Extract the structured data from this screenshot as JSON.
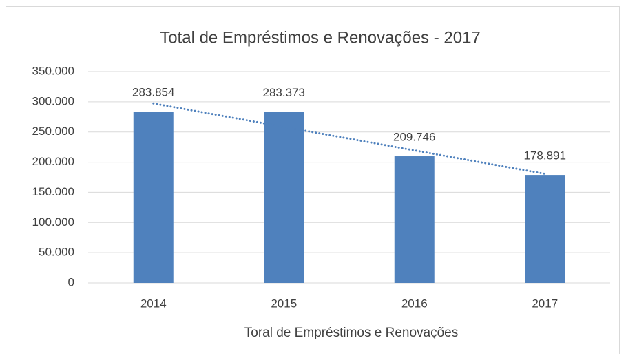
{
  "chart_data": {
    "type": "bar",
    "title": "Total de Empréstimos e Renovações - 2017",
    "x_label": "Toral de Empréstimos e Renovações",
    "categories": [
      "2014",
      "2015",
      "2016",
      "2017"
    ],
    "values": [
      283854,
      283373,
      209746,
      178891
    ],
    "value_labels": [
      "283.854",
      "283.373",
      "209.746",
      "178.891"
    ],
    "color": "#4f81bd",
    "trendline": "linear",
    "ylim": [
      0,
      350000
    ],
    "yticks": [
      0,
      {
        "value": 50000,
        "label": "50.000"
      },
      {
        "value": 100000,
        "label": "100.000"
      },
      {
        "value": 150000,
        "label": "150.000"
      },
      {
        "value": 200000,
        "label": "200.000"
      },
      {
        "value": 250000,
        "label": "250.000"
      },
      {
        "value": 300000,
        "label": "300.000"
      },
      {
        "value": 350000,
        "label": "350.000"
      }
    ],
    "grid": true
  }
}
